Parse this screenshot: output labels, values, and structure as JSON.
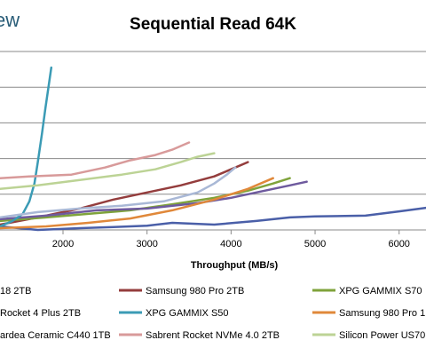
{
  "brand_fragment": "ew",
  "chart_data": {
    "type": "line",
    "title": "Sequential Read 64K",
    "xlabel": "Throughput (MB/s)",
    "ylabel": "",
    "x_ticks": [
      2000,
      3000,
      4000,
      5000,
      6000
    ],
    "x_range": [
      1250,
      6320
    ],
    "y_range": [
      0,
      5
    ],
    "grid": "horizontal",
    "legend_position": "bottom",
    "legend_labels": [
      "18 2TB",
      "Samsung 980 Pro 2TB",
      "XPG GAMMIX S70",
      "Rocket 4 Plus 2TB",
      "XPG GAMMIX S50",
      "Samsung 980 Pro 1",
      "ardea Ceramic C440 1TB",
      "Sabrent Rocket NVMe 4.0 2TB",
      "Silicon Power US70"
    ],
    "series": [
      {
        "legend_index": 0,
        "color": "#4a5fa8",
        "x": [
          1250,
          1700,
          2200,
          2600,
          3000,
          3300,
          3800,
          4300,
          4700,
          5000,
          5600,
          6000,
          6320
        ],
        "y": [
          0.1,
          0.0,
          0.05,
          0.08,
          0.12,
          0.2,
          0.15,
          0.25,
          0.35,
          0.38,
          0.4,
          0.52,
          0.62
        ]
      },
      {
        "legend_index": 1,
        "color": "#943d3d",
        "x": [
          1250,
          1700,
          2200,
          2600,
          3000,
          3400,
          3800,
          4050,
          4200
        ],
        "y": [
          0.15,
          0.35,
          0.6,
          0.85,
          1.05,
          1.25,
          1.5,
          1.75,
          1.9
        ]
      },
      {
        "legend_index": 2,
        "color": "#7fa33b",
        "x": [
          1250,
          1800,
          2300,
          2800,
          3300,
          3800,
          4200,
          4500,
          4700
        ],
        "y": [
          0.25,
          0.35,
          0.45,
          0.55,
          0.72,
          0.9,
          1.1,
          1.3,
          1.45
        ]
      },
      {
        "legend_index": 3,
        "color": "#6e5a9e",
        "x": [
          1250,
          1800,
          2400,
          3000,
          3600,
          4000,
          4400,
          4700,
          4900
        ],
        "y": [
          0.3,
          0.4,
          0.55,
          0.6,
          0.75,
          0.9,
          1.1,
          1.25,
          1.35
        ]
      },
      {
        "legend_index": 4,
        "color": "#3b9bb5",
        "x": [
          1250,
          1400,
          1520,
          1600,
          1660,
          1700,
          1750,
          1790,
          1830,
          1860
        ],
        "y": [
          0.1,
          0.25,
          0.45,
          0.8,
          1.3,
          1.9,
          2.7,
          3.4,
          4.05,
          4.55
        ]
      },
      {
        "legend_index": 5,
        "color": "#e0883a",
        "x": [
          1250,
          1800,
          2300,
          2800,
          3300,
          3800,
          4200,
          4500
        ],
        "y": [
          0.05,
          0.1,
          0.2,
          0.32,
          0.55,
          0.85,
          1.15,
          1.45
        ]
      },
      {
        "legend_index": 6,
        "color": "#a9b8d6",
        "x": [
          1250,
          1700,
          2200,
          2700,
          3200,
          3600,
          3800,
          3950,
          4050
        ],
        "y": [
          0.35,
          0.5,
          0.6,
          0.68,
          0.8,
          1.05,
          1.3,
          1.55,
          1.75
        ]
      },
      {
        "legend_index": 7,
        "color": "#d89a9a",
        "x": [
          1250,
          1600,
          2100,
          2500,
          2800,
          3100,
          3300,
          3450,
          3500
        ],
        "y": [
          1.45,
          1.5,
          1.55,
          1.75,
          1.95,
          2.1,
          2.25,
          2.4,
          2.45
        ]
      },
      {
        "legend_index": 8,
        "color": "#bcd395",
        "x": [
          1250,
          1700,
          2200,
          2700,
          3100,
          3400,
          3600,
          3800
        ],
        "y": [
          1.15,
          1.25,
          1.4,
          1.55,
          1.7,
          1.9,
          2.05,
          2.15
        ]
      }
    ]
  }
}
